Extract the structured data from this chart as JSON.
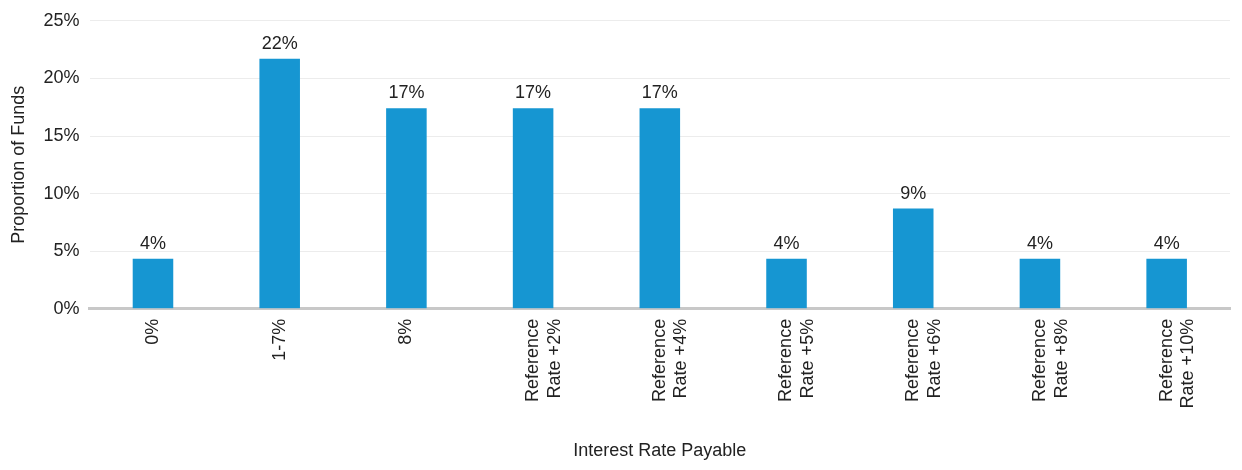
{
  "chart_data": {
    "type": "bar",
    "xlabel": "Interest Rate Payable",
    "ylabel": "Proportion of Funds",
    "categories": [
      "0%",
      "1-7%",
      "8%",
      "Reference Rate +2%",
      "Reference Rate +4%",
      "Reference Rate +5%",
      "Reference Rate +6%",
      "Reference Rate +8%",
      "Reference Rate +10%"
    ],
    "values": [
      4.35,
      21.7,
      17.4,
      17.4,
      17.4,
      4.35,
      8.7,
      4.35,
      4.35
    ],
    "value_labels": [
      "4%",
      "22%",
      "17%",
      "17%",
      "17%",
      "4%",
      "9%",
      "4%",
      "4%"
    ],
    "color": "#1696d2",
    "ylim": [
      0,
      25
    ],
    "yticks": [
      {
        "value": 0,
        "label": "0%"
      },
      {
        "value": 5,
        "label": "5%"
      },
      {
        "value": 10,
        "label": "10%"
      },
      {
        "value": 15,
        "label": "15%"
      },
      {
        "value": 20,
        "label": "20%"
      },
      {
        "value": 25,
        "label": "25%"
      }
    ],
    "grid": "y",
    "legend": false
  }
}
